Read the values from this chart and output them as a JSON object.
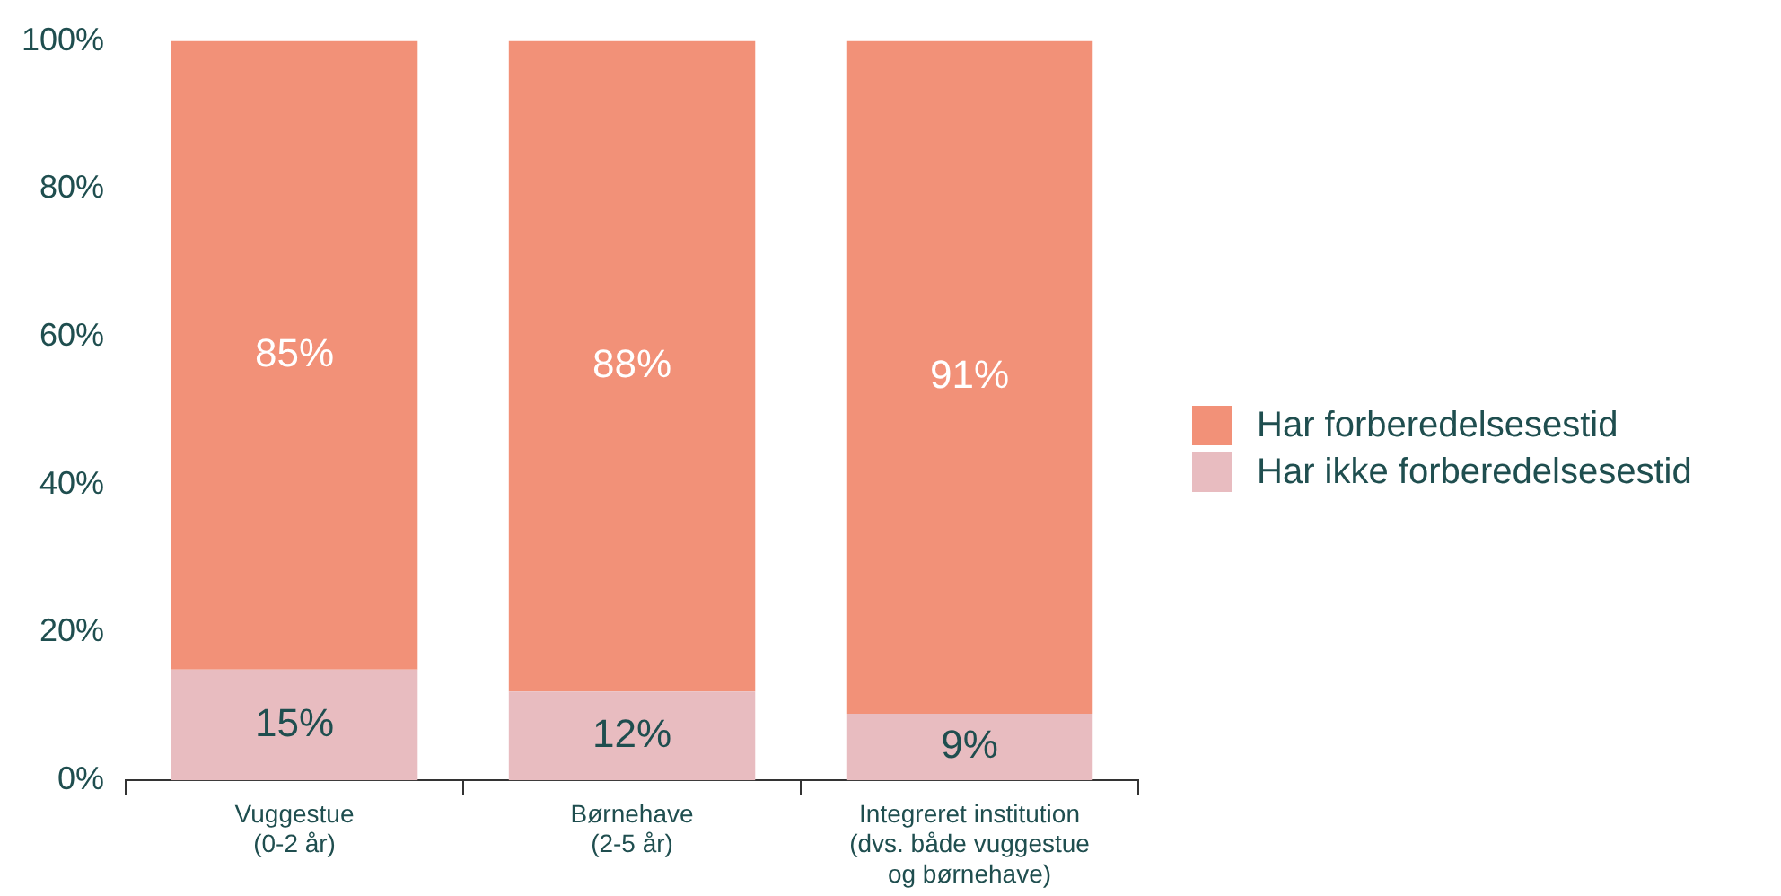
{
  "chart_data": {
    "type": "bar",
    "stacked": true,
    "categories": [
      "Vuggestue (0-2 år)",
      "Børnehave (2-5 år)",
      "Integreret institution (dvs. både vuggestue og børnehave)"
    ],
    "series": [
      {
        "name": "Har ikke forberedelsesestid",
        "color": "#e8bcc0",
        "values": [
          15,
          12,
          9
        ],
        "value_labels": [
          "15%",
          "12%",
          "9%"
        ]
      },
      {
        "name": "Har forberedelsesestid",
        "color": "#f29178",
        "values": [
          85,
          88,
          91
        ],
        "value_labels": [
          "85%",
          "88%",
          "91%"
        ]
      }
    ],
    "ylim": [
      0,
      100
    ],
    "yticks": [
      {
        "value": 0,
        "label": "0%"
      },
      {
        "value": 20,
        "label": "20%"
      },
      {
        "value": 40,
        "label": "40%"
      },
      {
        "value": 60,
        "label": "60%"
      },
      {
        "value": 80,
        "label": "80%"
      },
      {
        "value": 100,
        "label": "100%"
      }
    ],
    "legend": "right",
    "grid": false
  }
}
